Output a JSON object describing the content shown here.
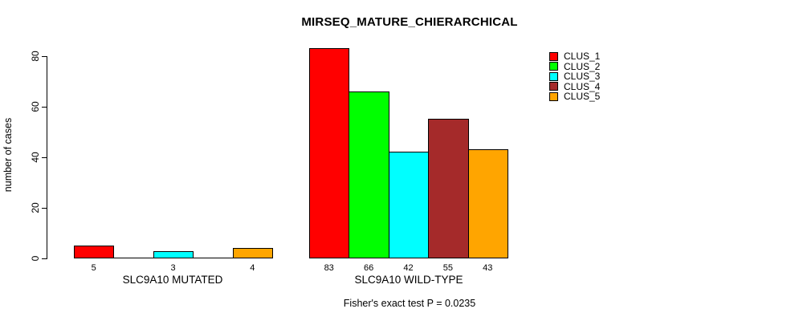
{
  "title": "MIRSEQ_MATURE_CHIERARCHICAL",
  "footer": "Fisher's exact test P = 0.0235",
  "y_axis": {
    "label": "number of cases"
  },
  "legend": {
    "items": [
      {
        "label": "CLUS_1",
        "color": "#ff0000"
      },
      {
        "label": "CLUS_2",
        "color": "#00ff00"
      },
      {
        "label": "CLUS_3",
        "color": "#00ffff"
      },
      {
        "label": "CLUS_4",
        "color": "#a52a2a"
      },
      {
        "label": "CLUS_5",
        "color": "#ffa500"
      }
    ]
  },
  "chart_data": {
    "type": "bar",
    "title": "MIRSEQ_MATURE_CHIERARCHICAL",
    "ylabel": "number of cases",
    "xlabel": "",
    "ylim": [
      0,
      83
    ],
    "yticks": [
      0,
      20,
      40,
      60,
      80
    ],
    "grid": false,
    "legend_position": "top-right",
    "categories": [
      "SLC9A10 MUTATED",
      "SLC9A10 WILD-TYPE"
    ],
    "series": [
      {
        "name": "CLUS_1",
        "color": "#ff0000",
        "values": [
          5,
          83
        ]
      },
      {
        "name": "CLUS_2",
        "color": "#00ff00",
        "values": [
          0,
          66
        ]
      },
      {
        "name": "CLUS_3",
        "color": "#00ffff",
        "values": [
          3,
          42
        ]
      },
      {
        "name": "CLUS_4",
        "color": "#a52a2a",
        "values": [
          0,
          55
        ]
      },
      {
        "name": "CLUS_5",
        "color": "#ffa500",
        "values": [
          4,
          43
        ]
      }
    ],
    "bar_labels": [
      [
        "5",
        "",
        "3",
        "",
        "4"
      ],
      [
        "83",
        "66",
        "42",
        "55",
        "43"
      ]
    ],
    "annotation": "Fisher's exact test P = 0.0235"
  }
}
